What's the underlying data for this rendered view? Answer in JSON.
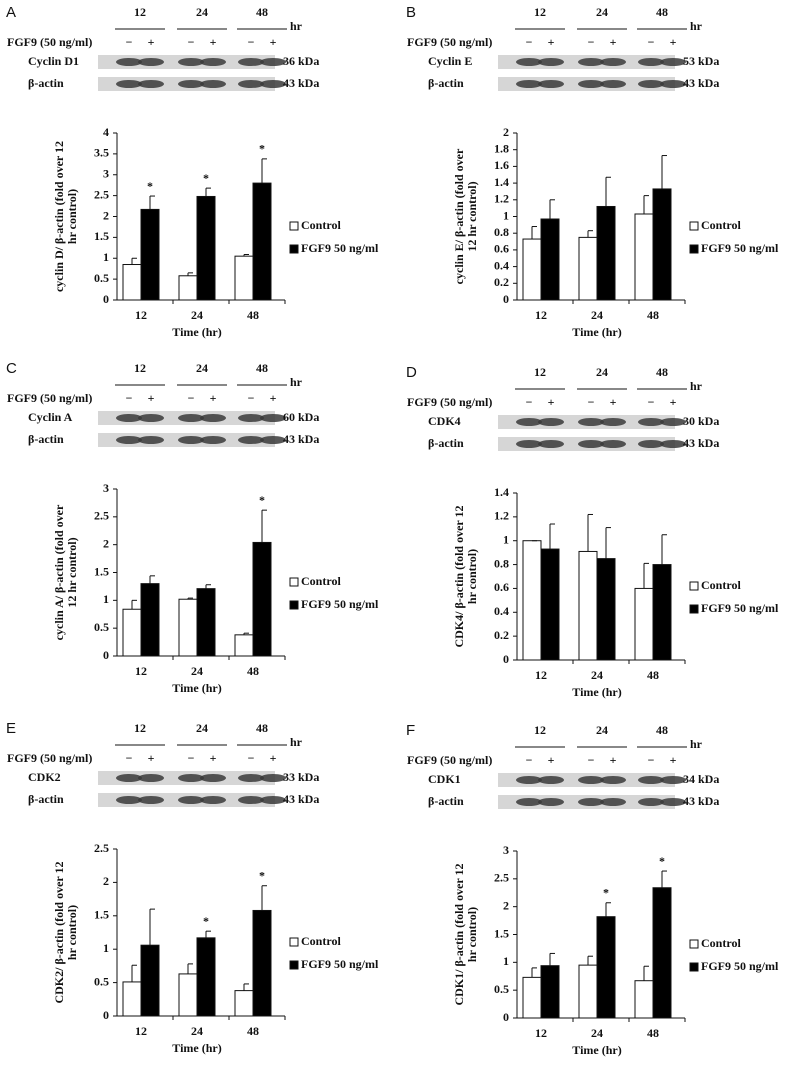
{
  "chart_data": [
    {
      "type": "bar",
      "panel": "A",
      "blot": {
        "times": [
          "12",
          "24",
          "48"
        ],
        "time_unit": "hr",
        "treatment": "FGF9 (50 ng/ml)",
        "signs": [
          "−",
          "+"
        ],
        "bands": [
          {
            "name": "Cyclin D1",
            "size": "36 kDa"
          },
          {
            "name": "β-actin",
            "size": "43 kDa"
          }
        ]
      },
      "ylabel": [
        "cyclin D/ β-actin (fold over 12",
        "hr control)"
      ],
      "xlabel": "Time (hr)",
      "categories": [
        "12",
        "24",
        "48"
      ],
      "ylim": [
        0,
        4
      ],
      "yticks": [
        0,
        0.5,
        1,
        1.5,
        2,
        2.5,
        3,
        3.5,
        4
      ],
      "series": [
        {
          "name": "Control",
          "color": "#ffffff",
          "values": [
            0.85,
            0.58,
            1.05
          ],
          "errors": [
            0.15,
            0.07,
            0.04
          ],
          "markers": [
            null,
            null,
            null
          ]
        },
        {
          "name": "FGF9 50 ng/ml",
          "color": "#000000",
          "values": [
            2.17,
            2.48,
            2.8
          ],
          "errors": [
            0.32,
            0.2,
            0.58
          ],
          "markers": [
            "*",
            "*",
            "*"
          ]
        }
      ]
    },
    {
      "type": "bar",
      "panel": "B",
      "blot": {
        "times": [
          "12",
          "24",
          "48"
        ],
        "time_unit": "hr",
        "treatment": "FGF9 (50 ng/ml)",
        "signs": [
          "−",
          "+"
        ],
        "bands": [
          {
            "name": "Cyclin E",
            "size": "53 kDa"
          },
          {
            "name": "β-actin",
            "size": "43 kDa"
          }
        ]
      },
      "ylabel": [
        "cyclin E/ β-actin (fold over",
        "12 hr control)"
      ],
      "xlabel": "Time (hr)",
      "categories": [
        "12",
        "24",
        "48"
      ],
      "ylim": [
        0,
        2
      ],
      "yticks": [
        0,
        0.2,
        0.4,
        0.6,
        0.8,
        1,
        1.2,
        1.4,
        1.6,
        1.8,
        2
      ],
      "series": [
        {
          "name": "Control",
          "color": "#ffffff",
          "values": [
            0.73,
            0.75,
            1.03
          ],
          "errors": [
            0.15,
            0.08,
            0.22
          ],
          "markers": [
            null,
            null,
            null
          ]
        },
        {
          "name": "FGF9 50 ng/ml",
          "color": "#000000",
          "values": [
            0.97,
            1.12,
            1.33
          ],
          "errors": [
            0.23,
            0.35,
            0.4
          ],
          "markers": [
            null,
            null,
            null
          ]
        }
      ]
    },
    {
      "type": "bar",
      "panel": "C",
      "blot": {
        "times": [
          "12",
          "24",
          "48"
        ],
        "time_unit": "hr",
        "treatment": "FGF9 (50 ng/ml)",
        "signs": [
          "−",
          "+"
        ],
        "bands": [
          {
            "name": "Cyclin A",
            "size": "60 kDa"
          },
          {
            "name": "β-actin",
            "size": "43 kDa"
          }
        ]
      },
      "ylabel": [
        "cyclin A/ β-actin (fold over",
        "12 hr control)"
      ],
      "xlabel": "Time (hr)",
      "categories": [
        "12",
        "24",
        "48"
      ],
      "ylim": [
        0,
        3
      ],
      "yticks": [
        0,
        0.5,
        1,
        1.5,
        2,
        2.5,
        3
      ],
      "series": [
        {
          "name": "Control",
          "color": "#ffffff",
          "values": [
            0.84,
            1.02,
            0.38
          ],
          "errors": [
            0.16,
            0.02,
            0.03
          ],
          "markers": [
            null,
            null,
            null
          ]
        },
        {
          "name": "FGF9 50 ng/ml",
          "color": "#000000",
          "values": [
            1.3,
            1.21,
            2.04
          ],
          "errors": [
            0.14,
            0.07,
            0.58
          ],
          "markers": [
            null,
            null,
            "*"
          ]
        }
      ]
    },
    {
      "type": "bar",
      "panel": "D",
      "blot": {
        "times": [
          "12",
          "24",
          "48"
        ],
        "time_unit": "hr",
        "treatment": "FGF9 (50 ng/ml)",
        "signs": [
          "−",
          "+"
        ],
        "bands": [
          {
            "name": "CDK4",
            "size": "30 kDa"
          },
          {
            "name": "β-actin",
            "size": "43 kDa"
          }
        ]
      },
      "ylabel": [
        "CDK4/ β-actin (fold over 12",
        "hr control)"
      ],
      "xlabel": "Time (hr)",
      "categories": [
        "12",
        "24",
        "48"
      ],
      "ylim": [
        0,
        1.4
      ],
      "yticks": [
        0,
        0.2,
        0.4,
        0.6,
        0.8,
        1,
        1.2,
        1.4
      ],
      "series": [
        {
          "name": "Control",
          "color": "#ffffff",
          "values": [
            1.0,
            0.91,
            0.6
          ],
          "errors": [
            0,
            0.31,
            0.21
          ],
          "markers": [
            null,
            null,
            null
          ]
        },
        {
          "name": "FGF9 50 ng/ml",
          "color": "#000000",
          "values": [
            0.93,
            0.85,
            0.8
          ],
          "errors": [
            0.21,
            0.26,
            0.25
          ],
          "markers": [
            null,
            null,
            null
          ]
        }
      ]
    },
    {
      "type": "bar",
      "panel": "E",
      "blot": {
        "times": [
          "12",
          "24",
          "48"
        ],
        "time_unit": "hr",
        "treatment": "FGF9 (50 ng/ml)",
        "signs": [
          "−",
          "+"
        ],
        "bands": [
          {
            "name": "CDK2",
            "size": "33 kDa"
          },
          {
            "name": "β-actin",
            "size": "43 kDa"
          }
        ]
      },
      "ylabel": [
        "CDK2/ β-actin (fold over 12",
        "hr control)"
      ],
      "xlabel": "Time (hr)",
      "categories": [
        "12",
        "24",
        "48"
      ],
      "ylim": [
        0,
        2.5
      ],
      "yticks": [
        0,
        0.5,
        1,
        1.5,
        2,
        2.5
      ],
      "series": [
        {
          "name": "Control",
          "color": "#ffffff",
          "values": [
            0.51,
            0.63,
            0.38
          ],
          "errors": [
            0.25,
            0.15,
            0.1
          ],
          "markers": [
            null,
            null,
            null
          ]
        },
        {
          "name": "FGF9 50 ng/ml",
          "color": "#000000",
          "values": [
            1.06,
            1.17,
            1.58
          ],
          "errors": [
            0.54,
            0.1,
            0.37
          ],
          "markers": [
            null,
            "*",
            "*"
          ]
        }
      ]
    },
    {
      "type": "bar",
      "panel": "F",
      "blot": {
        "times": [
          "12",
          "24",
          "48"
        ],
        "time_unit": "hr",
        "treatment": "FGF9 (50 ng/ml)",
        "signs": [
          "−",
          "+"
        ],
        "bands": [
          {
            "name": "CDK1",
            "size": "34 kDa"
          },
          {
            "name": "β-actin",
            "size": "43 kDa"
          }
        ]
      },
      "ylabel": [
        "CDK1/ β-actin (fold over 12",
        "hr control)"
      ],
      "xlabel": "Time (hr)",
      "categories": [
        "12",
        "24",
        "48"
      ],
      "ylim": [
        0,
        3
      ],
      "yticks": [
        0,
        0.5,
        1,
        1.5,
        2,
        2.5,
        3
      ],
      "series": [
        {
          "name": "Control",
          "color": "#ffffff",
          "values": [
            0.73,
            0.95,
            0.67
          ],
          "errors": [
            0.17,
            0.16,
            0.26
          ],
          "markers": [
            null,
            null,
            null
          ]
        },
        {
          "name": "FGF9 50 ng/ml",
          "color": "#000000",
          "values": [
            0.94,
            1.82,
            2.34
          ],
          "errors": [
            0.22,
            0.25,
            0.3
          ],
          "markers": [
            null,
            "*",
            "*"
          ]
        }
      ]
    }
  ]
}
